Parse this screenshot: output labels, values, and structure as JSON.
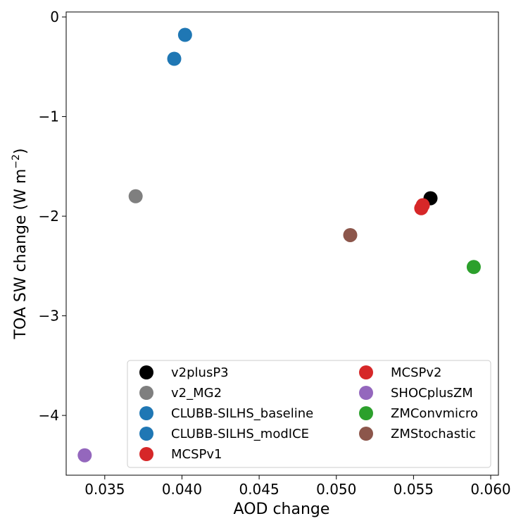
{
  "chart_data": {
    "type": "scatter",
    "title": "",
    "xlabel": "AOD change",
    "ylabel_main": "TOA SW change (W m",
    "ylabel_sup": "−2",
    "ylabel_tail": ")",
    "xlim": [
      0.0325,
      0.0605
    ],
    "ylim": [
      -4.6,
      0.05
    ],
    "xticks": [
      0.035,
      0.04,
      0.045,
      0.05,
      0.055,
      0.06
    ],
    "xtick_labels": [
      "0.035",
      "0.040",
      "0.045",
      "0.050",
      "0.055",
      "0.060"
    ],
    "yticks": [
      0,
      -1,
      -2,
      -3,
      -4
    ],
    "ytick_labels": [
      "0",
      "−1",
      "−2",
      "−3",
      "−4"
    ],
    "grid": false,
    "legend_position": "bottom-right",
    "series": [
      {
        "name": "v2plusP3",
        "color": "#000000",
        "points": [
          [
            0.0561,
            -1.82
          ]
        ]
      },
      {
        "name": "v2_MG2",
        "color": "#7f7f7f",
        "points": [
          [
            0.037,
            -1.8
          ]
        ]
      },
      {
        "name": "CLUBB-SILHS_baseline",
        "color": "#1f77b4",
        "points": [
          [
            0.0402,
            -0.18
          ]
        ]
      },
      {
        "name": "CLUBB-SILHS_modICE",
        "color": "#1f77b4",
        "points": [
          [
            0.0395,
            -0.42
          ]
        ]
      },
      {
        "name": "MCSPv1",
        "color": "#d62728",
        "points": [
          [
            0.0555,
            -1.92
          ]
        ]
      },
      {
        "name": "MCSPv2",
        "color": "#d62728",
        "points": [
          [
            0.0556,
            -1.89
          ]
        ]
      },
      {
        "name": "SHOCplusZM",
        "color": "#9467bd",
        "points": [
          [
            0.0337,
            -4.4
          ]
        ]
      },
      {
        "name": "ZMConvmicro",
        "color": "#2ca02c",
        "points": [
          [
            0.0589,
            -2.51
          ]
        ]
      },
      {
        "name": "ZMStochastic",
        "color": "#8c564b",
        "points": [
          [
            0.0509,
            -2.19
          ]
        ]
      }
    ]
  }
}
